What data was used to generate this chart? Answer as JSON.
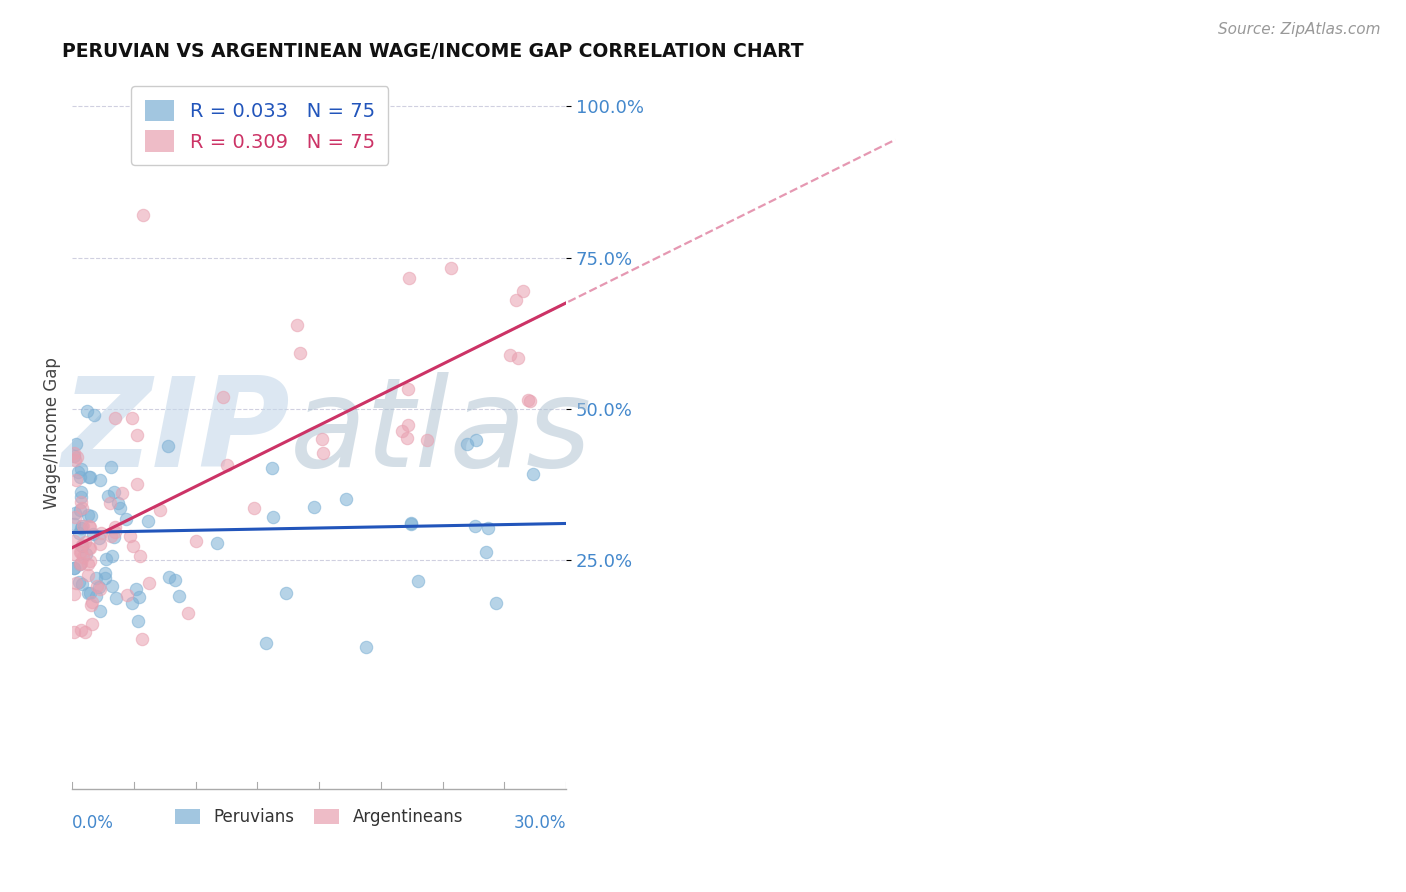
{
  "title": "PERUVIAN VS ARGENTINEAN WAGE/INCOME GAP CORRELATION CHART",
  "source": "Source: ZipAtlas.com",
  "ylabel": "Wage/Income Gap",
  "xmin": 0.0,
  "xmax": 0.3,
  "ymin": -0.13,
  "ymax": 1.05,
  "R_peruvian": 0.033,
  "R_argentinean": 0.309,
  "N": 75,
  "peruvian_color": "#7bafd4",
  "argentinean_color": "#e8a0b0",
  "trend_peruvian_color": "#2255bb",
  "trend_argentinean_color": "#cc3366",
  "ytick_color": "#4488cc",
  "xtick_color": "#4488cc",
  "grid_color": "#d0d0e0",
  "title_color": "#111111",
  "source_color": "#999999",
  "legend_peru_text_color": "#2255bb",
  "legend_arg_text_color": "#cc3366",
  "watermark_zip_color": "#c8d8e8",
  "watermark_atlas_color": "#aabbd0",
  "peru_trend_intercept": 0.295,
  "peru_trend_slope": 0.05,
  "arg_trend_intercept": 0.27,
  "arg_trend_slope": 1.35
}
